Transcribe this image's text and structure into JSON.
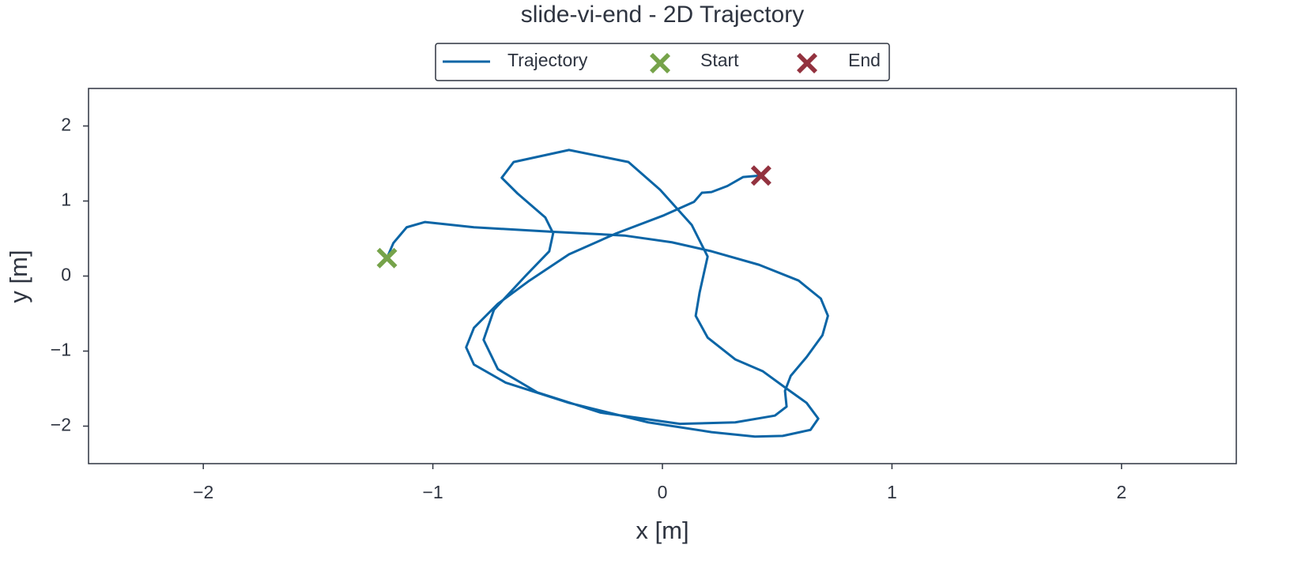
{
  "chart_data": {
    "type": "line",
    "title": "slide-vi-end - 2D Trajectory",
    "x_label": "x [m]",
    "y_label": "y [m]",
    "xlim": [
      -2.5,
      2.5
    ],
    "ylim": [
      -2.5,
      2.5
    ],
    "xticks": [
      {
        "value": -2,
        "label": "−2"
      },
      {
        "value": -1,
        "label": "−1"
      },
      0,
      1,
      2
    ],
    "yticks": [
      {
        "value": -2,
        "label": "−2"
      },
      {
        "value": -1,
        "label": "−1"
      },
      0,
      1,
      2
    ],
    "grid": false,
    "legend_position": "top",
    "series": [
      {
        "name": "Trajectory",
        "color": "#0b65a6",
        "marker": "line",
        "x": [
          -1.2,
          -1.172,
          -1.114,
          -1.034,
          -0.821,
          -0.476,
          -0.166,
          0.041,
          0.214,
          0.421,
          0.593,
          0.69,
          0.721,
          0.697,
          0.628,
          0.559,
          0.534,
          0.541,
          0.49,
          0.317,
          0.076,
          -0.269,
          -0.545,
          -0.717,
          -0.779,
          -0.734,
          -0.597,
          -0.493,
          -0.476,
          -0.51,
          -0.631,
          -0.7,
          -0.648,
          -0.407,
          -0.148,
          -0.01,
          0.128,
          0.197,
          0.162,
          0.145,
          0.197,
          0.317,
          0.438,
          0.541,
          0.628,
          0.679,
          0.645,
          0.524,
          0.403,
          0.214,
          -0.062,
          -0.407,
          -0.683,
          -0.821,
          -0.855,
          -0.821,
          -0.717,
          -0.579,
          -0.407,
          -0.2,
          0.007,
          0.138,
          0.172,
          0.214,
          0.283,
          0.352,
          0.428
        ],
        "values": [
          0.24,
          0.44,
          0.65,
          0.72,
          0.65,
          0.59,
          0.54,
          0.45,
          0.33,
          0.15,
          -0.06,
          -0.3,
          -0.53,
          -0.79,
          -1.08,
          -1.33,
          -1.53,
          -1.74,
          -1.86,
          -1.95,
          -1.97,
          -1.82,
          -1.55,
          -1.24,
          -0.85,
          -0.45,
          0.0,
          0.33,
          0.57,
          0.78,
          1.1,
          1.31,
          1.52,
          1.68,
          1.52,
          1.15,
          0.68,
          0.26,
          -0.22,
          -0.53,
          -0.82,
          -1.11,
          -1.27,
          -1.5,
          -1.69,
          -1.9,
          -2.05,
          -2.13,
          -2.14,
          -2.08,
          -1.95,
          -1.69,
          -1.42,
          -1.18,
          -0.95,
          -0.69,
          -0.37,
          -0.06,
          0.29,
          0.57,
          0.81,
          0.99,
          1.11,
          1.12,
          1.2,
          1.32,
          1.34
        ]
      },
      {
        "name": "Start",
        "color": "#76a34a",
        "marker": "x",
        "x": [
          -1.2
        ],
        "values": [
          0.24
        ]
      },
      {
        "name": "End",
        "color": "#93323f",
        "marker": "x",
        "x": [
          0.43
        ],
        "values": [
          1.34
        ]
      }
    ]
  }
}
